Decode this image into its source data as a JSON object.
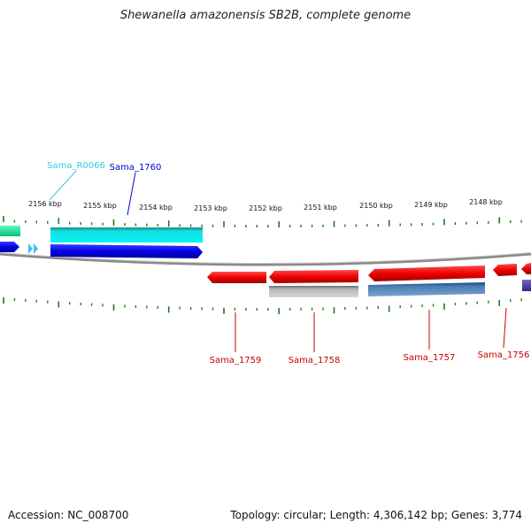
{
  "title": "Shewanella amazonensis SB2B, complete genome",
  "footer": {
    "accession": "Accession: NC_008700",
    "summary": "Topology: circular; Length: 4,306,142 bp; Genes: 3,774"
  },
  "axis": {
    "ticks": [
      {
        "label": "2156 kbp"
      },
      {
        "label": "2155 kbp"
      },
      {
        "label": "2154 kbp"
      },
      {
        "label": "2153 kbp"
      },
      {
        "label": "2152 kbp"
      },
      {
        "label": "2151 kbp"
      },
      {
        "label": "2150 kbp"
      },
      {
        "label": "2149 kbp"
      },
      {
        "label": "2148 kbp"
      }
    ]
  },
  "features": [
    {
      "name": "Sama_R0066",
      "color": "#33ccdd",
      "strand": "plus"
    },
    {
      "name": "Sama_1760",
      "color": "#0000cc",
      "strand": "plus"
    },
    {
      "name": "Sama_1759",
      "color": "#cc0000",
      "strand": "minus"
    },
    {
      "name": "Sama_1758",
      "color": "#cc0000",
      "strand": "minus"
    },
    {
      "name": "Sama_1757",
      "color": "#cc0000",
      "strand": "minus"
    },
    {
      "name": "Sama_1756",
      "color": "#cc0000",
      "strand": "minus"
    }
  ],
  "colors": {
    "tick": "#1f7a1f",
    "backbone": "#808080",
    "gene_blue": "#0000e0",
    "gene_cyan": "#00e6e6",
    "gene_red": "#ee0000",
    "gene_green": "#22dd99",
    "cds_gray": "#b0b0b0",
    "cds_steel": "#4a7fb5",
    "cds_purple": "#5544aa"
  }
}
